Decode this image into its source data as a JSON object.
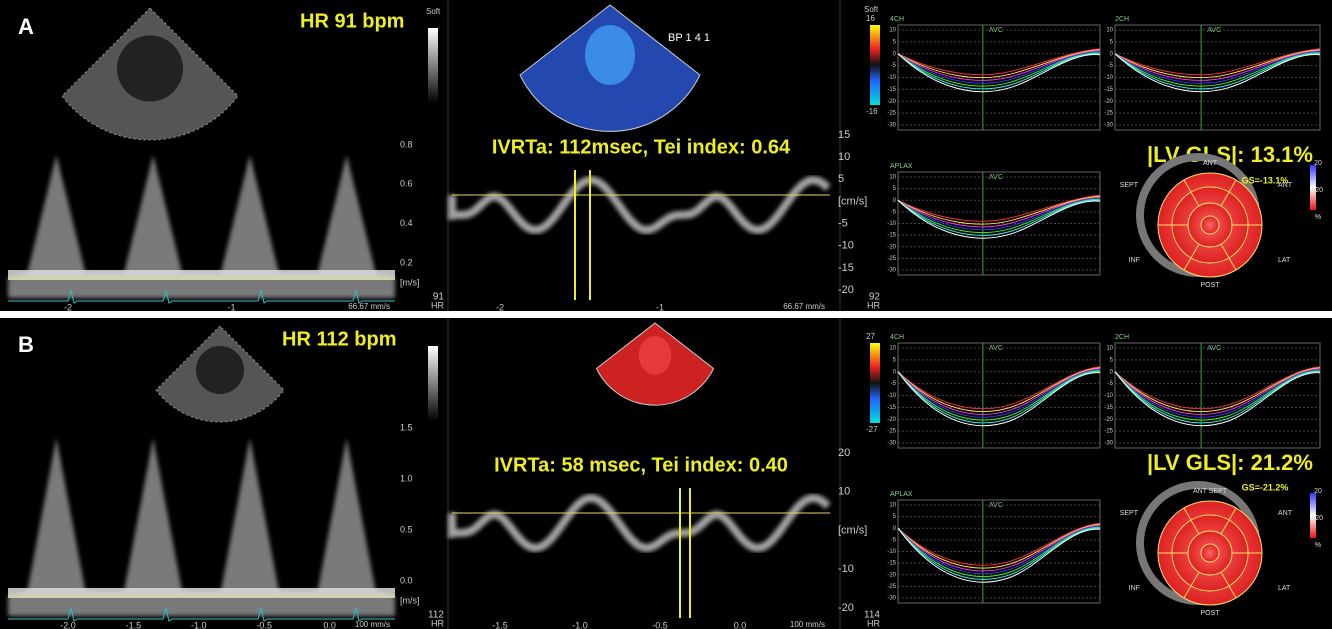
{
  "panels": [
    {
      "label": "A",
      "hr": "HR 91 bpm",
      "gray_label": "Soft",
      "pw_yticks": [
        "0.8",
        "0.6",
        "0.4",
        "0.2"
      ],
      "pw_unit": "[m/s]",
      "pw_xticks": [
        "-2",
        "-1"
      ],
      "pw_speed": "66.67 mm/s",
      "hr_left": [
        "91",
        "HR"
      ],
      "color_label": "BP 1 4 1",
      "color_scale": [
        "Soft",
        "16",
        "-16"
      ],
      "tdi_title": "IVRTa: 112msec, Tei index: 0.64",
      "tdi_yticks": [
        "15",
        "10",
        "5",
        "[cm/s]",
        "-5",
        "-10",
        "-15",
        "-20"
      ],
      "tdi_xticks": [
        "-2",
        "-1"
      ],
      "tdi_speed": "66.67 mm/s",
      "hr_right": [
        "92",
        "HR"
      ],
      "views": [
        "4CH",
        "2CH",
        "APLAX"
      ],
      "avc": "AVC",
      "strain_yticks": [
        "10",
        "5",
        "0",
        "-5",
        "-10",
        "-15",
        "-20",
        "-25",
        "-30"
      ],
      "gls": "|LV GLS|: 13.1%",
      "gs": "GS=-13.1%",
      "bullseye": {
        "top": "ANT",
        "left": "SEPT",
        "right": "ANT",
        "lower_left": "INF",
        "lower_right": "LAT",
        "bottom": "POST"
      },
      "bullseye_scale": [
        "20",
        "-20",
        "%"
      ]
    },
    {
      "label": "B",
      "hr": "HR 112 bpm",
      "gray_label": "",
      "pw_yticks": [
        "1.5",
        "1.0",
        "0.5",
        "0.0"
      ],
      "pw_unit": "[m/s]",
      "pw_xticks": [
        "-2.0",
        "-1.5",
        "-1.0",
        "-0.5",
        "0.0"
      ],
      "pw_speed": "100 mm/s",
      "hr_left": [
        "112",
        "HR"
      ],
      "color_label": "",
      "color_scale": [
        "",
        "27",
        "-27"
      ],
      "tdi_title": "IVRTa: 58 msec, Tei index: 0.40",
      "tdi_yticks": [
        "20",
        "10",
        "[cm/s]",
        "-10",
        "-20"
      ],
      "tdi_xticks": [
        "-1.5",
        "-1.0",
        "-0.5",
        "0.0"
      ],
      "tdi_speed": "100 mm/s",
      "hr_right": [
        "114",
        "HR"
      ],
      "views": [
        "4CH",
        "2CH",
        "APLAX"
      ],
      "avc": "AVC",
      "strain_yticks": [
        "10",
        "5",
        "0",
        "-5",
        "-10",
        "-15",
        "-20",
        "-25",
        "-30"
      ],
      "gls": "|LV GLS|: 21.2%",
      "gs": "GS=-21.2%",
      "bullseye": {
        "top": "ANT SEPT",
        "left": "SEPT",
        "right": "ANT",
        "lower_left": "INF",
        "lower_right": "LAT",
        "bottom": "POST"
      },
      "bullseye_scale": [
        "20",
        "-20",
        "%"
      ]
    }
  ]
}
